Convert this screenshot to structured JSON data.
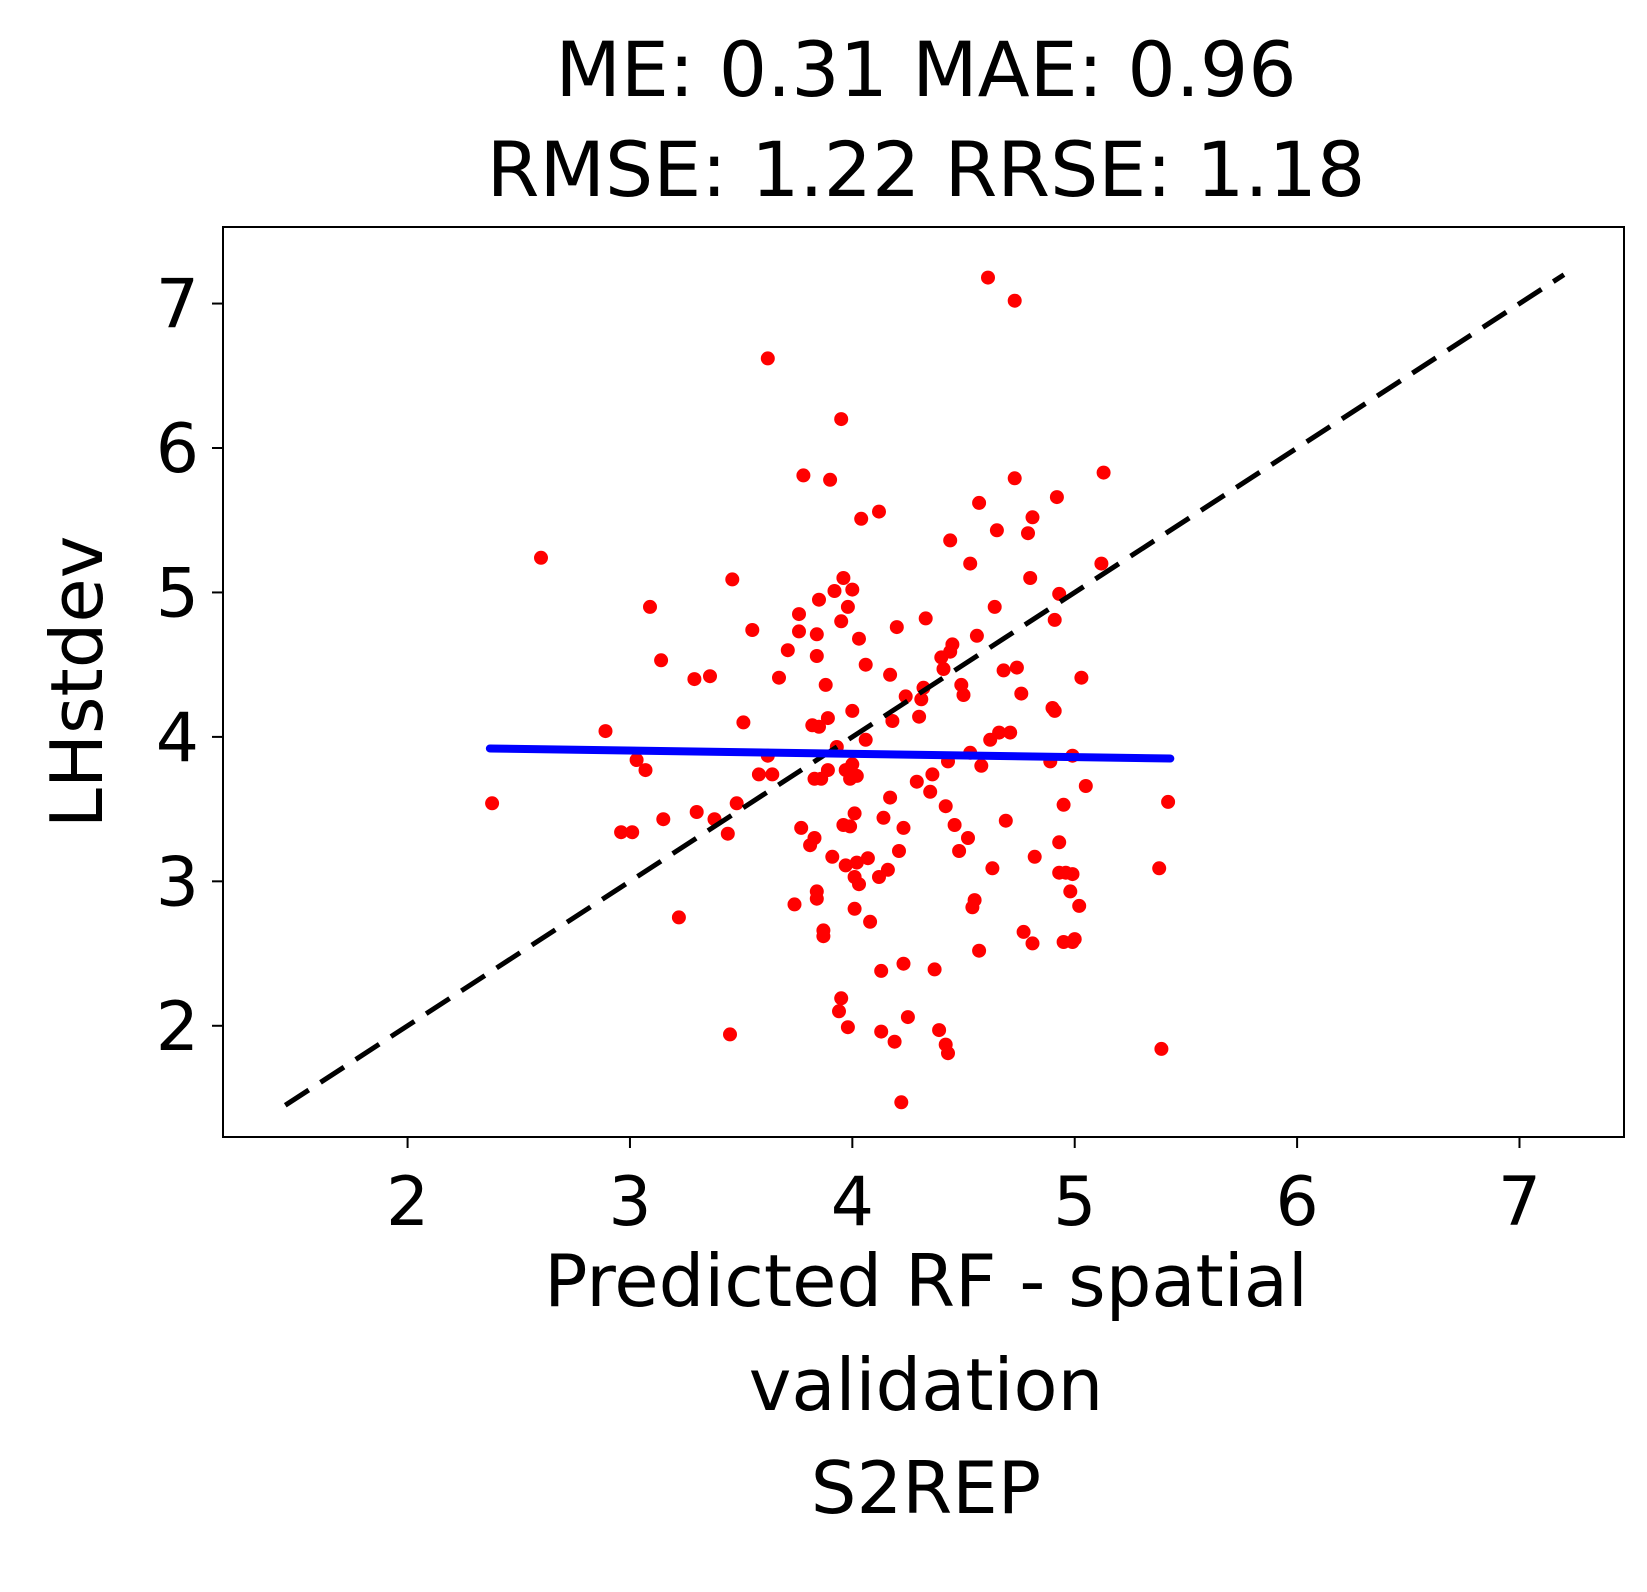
{
  "chart_data": {
    "type": "scatter",
    "title_lines": [
      "ME: 0.31 MAE: 0.96",
      "RMSE: 1.22 RRSE: 1.18"
    ],
    "xlabel_lines": [
      "Predicted RF - spatial",
      "validation",
      "S2REP"
    ],
    "ylabel": "LHstdev",
    "xlim": [
      1.17,
      7.47
    ],
    "ylim": [
      1.23,
      7.53
    ],
    "x_ticks": [
      2,
      3,
      4,
      5,
      6,
      7
    ],
    "y_ticks": [
      2,
      3,
      4,
      5,
      6,
      7
    ],
    "x_tick_labels": [
      "2",
      "3",
      "4",
      "5",
      "6",
      "7"
    ],
    "y_tick_labels": [
      "2",
      "3",
      "4",
      "5",
      "6",
      "7"
    ],
    "grid": false,
    "point_color": "#ff0000",
    "fit_color": "#0000ff",
    "identity_color": "#000000",
    "identity_line": {
      "x": [
        1.45,
        7.2
      ],
      "y": [
        1.45,
        7.2
      ],
      "style": "dashed"
    },
    "fit_line": {
      "x": [
        2.37,
        5.43
      ],
      "y": [
        3.92,
        3.85
      ]
    },
    "points": [
      [
        2.38,
        3.54
      ],
      [
        2.6,
        5.24
      ],
      [
        2.89,
        4.04
      ],
      [
        2.96,
        3.34
      ],
      [
        3.01,
        3.34
      ],
      [
        3.03,
        3.84
      ],
      [
        3.07,
        3.77
      ],
      [
        3.09,
        4.9
      ],
      [
        3.14,
        4.53
      ],
      [
        3.15,
        3.43
      ],
      [
        3.22,
        2.75
      ],
      [
        3.29,
        4.4
      ],
      [
        3.3,
        3.48
      ],
      [
        3.36,
        4.42
      ],
      [
        3.38,
        3.43
      ],
      [
        3.44,
        3.33
      ],
      [
        3.45,
        1.94
      ],
      [
        3.46,
        5.09
      ],
      [
        3.48,
        3.54
      ],
      [
        3.51,
        4.1
      ],
      [
        3.55,
        4.74
      ],
      [
        3.58,
        3.74
      ],
      [
        3.62,
        6.62
      ],
      [
        3.62,
        3.87
      ],
      [
        3.64,
        3.74
      ],
      [
        3.67,
        4.41
      ],
      [
        3.71,
        4.6
      ],
      [
        3.74,
        2.84
      ],
      [
        3.76,
        4.85
      ],
      [
        3.76,
        4.73
      ],
      [
        3.77,
        3.37
      ],
      [
        3.78,
        5.81
      ],
      [
        3.81,
        3.25
      ],
      [
        3.82,
        4.08
      ],
      [
        3.83,
        3.71
      ],
      [
        3.83,
        3.3
      ],
      [
        3.84,
        2.93
      ],
      [
        3.84,
        2.88
      ],
      [
        3.84,
        4.71
      ],
      [
        3.84,
        4.56
      ],
      [
        3.85,
        4.95
      ],
      [
        3.85,
        4.07
      ],
      [
        3.86,
        3.71
      ],
      [
        3.87,
        2.66
      ],
      [
        3.87,
        2.62
      ],
      [
        3.88,
        4.36
      ],
      [
        3.89,
        4.13
      ],
      [
        3.89,
        3.77
      ],
      [
        3.9,
        5.78
      ],
      [
        3.91,
        3.17
      ],
      [
        3.92,
        5.01
      ],
      [
        3.93,
        3.93
      ],
      [
        3.94,
        2.1
      ],
      [
        3.95,
        6.2
      ],
      [
        3.95,
        2.19
      ],
      [
        3.95,
        4.8
      ],
      [
        3.96,
        5.1
      ],
      [
        3.96,
        3.39
      ],
      [
        3.97,
        3.77
      ],
      [
        3.97,
        3.11
      ],
      [
        3.98,
        1.99
      ],
      [
        3.98,
        4.9
      ],
      [
        3.99,
        3.38
      ],
      [
        3.99,
        3.71
      ],
      [
        4.0,
        5.02
      ],
      [
        4.0,
        3.81
      ],
      [
        4.0,
        4.18
      ],
      [
        4.01,
        3.03
      ],
      [
        4.01,
        2.81
      ],
      [
        4.01,
        3.47
      ],
      [
        4.02,
        3.13
      ],
      [
        4.02,
        3.73
      ],
      [
        4.03,
        4.68
      ],
      [
        4.03,
        2.98
      ],
      [
        4.04,
        5.51
      ],
      [
        4.06,
        3.98
      ],
      [
        4.06,
        4.5
      ],
      [
        4.07,
        3.16
      ],
      [
        4.08,
        2.72
      ],
      [
        4.12,
        5.56
      ],
      [
        4.12,
        3.03
      ],
      [
        4.13,
        2.38
      ],
      [
        4.13,
        1.96
      ],
      [
        4.14,
        3.44
      ],
      [
        4.16,
        3.08
      ],
      [
        4.17,
        3.58
      ],
      [
        4.17,
        4.43
      ],
      [
        4.18,
        4.11
      ],
      [
        4.19,
        1.89
      ],
      [
        4.2,
        4.76
      ],
      [
        4.21,
        3.21
      ],
      [
        4.22,
        1.47
      ],
      [
        4.23,
        2.43
      ],
      [
        4.23,
        3.37
      ],
      [
        4.24,
        4.28
      ],
      [
        4.25,
        2.06
      ],
      [
        4.29,
        3.69
      ],
      [
        4.3,
        4.14
      ],
      [
        4.31,
        4.26
      ],
      [
        4.32,
        4.34
      ],
      [
        4.33,
        4.82
      ],
      [
        4.35,
        3.62
      ],
      [
        4.36,
        3.74
      ],
      [
        4.37,
        2.39
      ],
      [
        4.39,
        1.97
      ],
      [
        4.4,
        4.55
      ],
      [
        4.41,
        4.47
      ],
      [
        4.42,
        3.52
      ],
      [
        4.42,
        1.87
      ],
      [
        4.43,
        1.81
      ],
      [
        4.43,
        3.83
      ],
      [
        4.44,
        4.59
      ],
      [
        4.44,
        5.36
      ],
      [
        4.45,
        4.64
      ],
      [
        4.46,
        3.39
      ],
      [
        4.48,
        3.21
      ],
      [
        4.49,
        4.36
      ],
      [
        4.5,
        4.29
      ],
      [
        4.52,
        3.3
      ],
      [
        4.53,
        3.89
      ],
      [
        4.53,
        5.2
      ],
      [
        4.54,
        2.82
      ],
      [
        4.55,
        2.87
      ],
      [
        4.56,
        4.7
      ],
      [
        4.57,
        5.62
      ],
      [
        4.57,
        2.52
      ],
      [
        4.58,
        3.8
      ],
      [
        4.61,
        7.18
      ],
      [
        4.62,
        3.98
      ],
      [
        4.63,
        3.09
      ],
      [
        4.64,
        4.9
      ],
      [
        4.65,
        5.43
      ],
      [
        4.66,
        4.03
      ],
      [
        4.68,
        4.46
      ],
      [
        4.69,
        3.42
      ],
      [
        4.71,
        4.03
      ],
      [
        4.73,
        7.02
      ],
      [
        4.73,
        5.79
      ],
      [
        4.74,
        4.48
      ],
      [
        4.76,
        4.3
      ],
      [
        4.77,
        2.65
      ],
      [
        4.79,
        5.41
      ],
      [
        4.8,
        5.1
      ],
      [
        4.81,
        5.52
      ],
      [
        4.81,
        2.57
      ],
      [
        4.82,
        3.17
      ],
      [
        4.89,
        3.83
      ],
      [
        4.9,
        4.2
      ],
      [
        4.91,
        4.81
      ],
      [
        4.91,
        4.18
      ],
      [
        4.92,
        5.66
      ],
      [
        4.93,
        3.27
      ],
      [
        4.93,
        4.99
      ],
      [
        4.93,
        3.06
      ],
      [
        4.95,
        2.58
      ],
      [
        4.95,
        3.53
      ],
      [
        4.96,
        3.06
      ],
      [
        4.98,
        2.93
      ],
      [
        4.99,
        3.87
      ],
      [
        4.99,
        3.05
      ],
      [
        4.99,
        2.58
      ],
      [
        5.0,
        2.6
      ],
      [
        5.02,
        2.83
      ],
      [
        5.03,
        4.41
      ],
      [
        5.05,
        3.66
      ],
      [
        5.12,
        5.2
      ],
      [
        5.13,
        5.83
      ],
      [
        5.38,
        3.09
      ],
      [
        5.39,
        1.84
      ],
      [
        5.42,
        3.55
      ]
    ]
  }
}
